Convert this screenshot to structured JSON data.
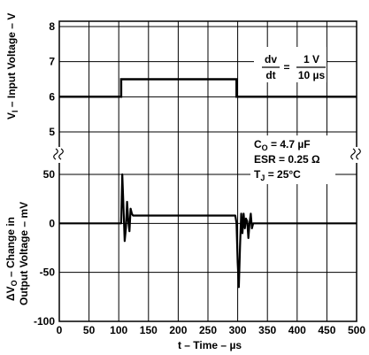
{
  "chart_data": [
    {
      "type": "line",
      "ylabel": "V_I – Input Voltage – V",
      "ylabel_parts": {
        "prefix": "V",
        "sub": "I",
        "suffix": " – Input Voltage – V"
      },
      "yticks": [
        "8",
        "7",
        "6",
        "5"
      ],
      "ytick_values": [
        8,
        7,
        6,
        5
      ],
      "ylim": [
        4.6,
        8.3
      ],
      "series": [
        {
          "x": [
            0,
            104,
            104,
            298,
            298,
            500
          ],
          "y": [
            6.0,
            6.0,
            6.5,
            6.5,
            6.0,
            6.0
          ]
        }
      ],
      "annotations": {
        "dv": "dv",
        "dt": "dt",
        "eq": "=",
        "num": "1 V",
        "den": "10 µs"
      }
    },
    {
      "type": "line",
      "ylabel_line1": "ΔV_O – Change in",
      "ylabel_line1_parts": {
        "prefix": "ΔV",
        "sub": "O",
        "suffix": " – Change in"
      },
      "ylabel_line2": "Output Voltage – mV",
      "yticks": [
        "50",
        "0",
        "-50",
        "-100"
      ],
      "ytick_values": [
        50,
        0,
        -50,
        -100
      ],
      "ylim": [
        -100,
        60
      ],
      "xlabel": "t – Time – µs",
      "xticks": [
        "0",
        "50",
        "100",
        "150",
        "200",
        "250",
        "300",
        "350",
        "400",
        "450",
        "500"
      ],
      "xtick_values": [
        0,
        50,
        100,
        150,
        200,
        250,
        300,
        350,
        400,
        450,
        500
      ],
      "xlim": [
        0,
        500
      ],
      "series": [
        {
          "x": [
            0,
            100,
            104,
            106,
            108,
            110,
            112,
            114,
            116,
            118,
            120,
            122,
            124,
            128,
            296,
            298,
            300,
            302,
            304,
            306,
            308,
            310,
            312,
            314,
            316,
            318,
            320,
            322,
            324,
            326,
            330,
            500
          ],
          "y": [
            0,
            0,
            0,
            50,
            15,
            -18,
            -5,
            22,
            2,
            -8,
            15,
            10,
            8,
            8,
            8,
            0,
            -40,
            -65,
            -22,
            10,
            -10,
            10,
            -5,
            5,
            2,
            -15,
            0,
            10,
            -5,
            0,
            0,
            0
          ]
        }
      ],
      "annotations": {
        "co": {
          "prefix": "C",
          "sub": "O",
          "suffix": " = 4.7 µF"
        },
        "esr": "ESR = 0.25 Ω",
        "tj": {
          "prefix": "T",
          "sub": "J",
          "suffix": " = 25°C"
        }
      }
    }
  ]
}
